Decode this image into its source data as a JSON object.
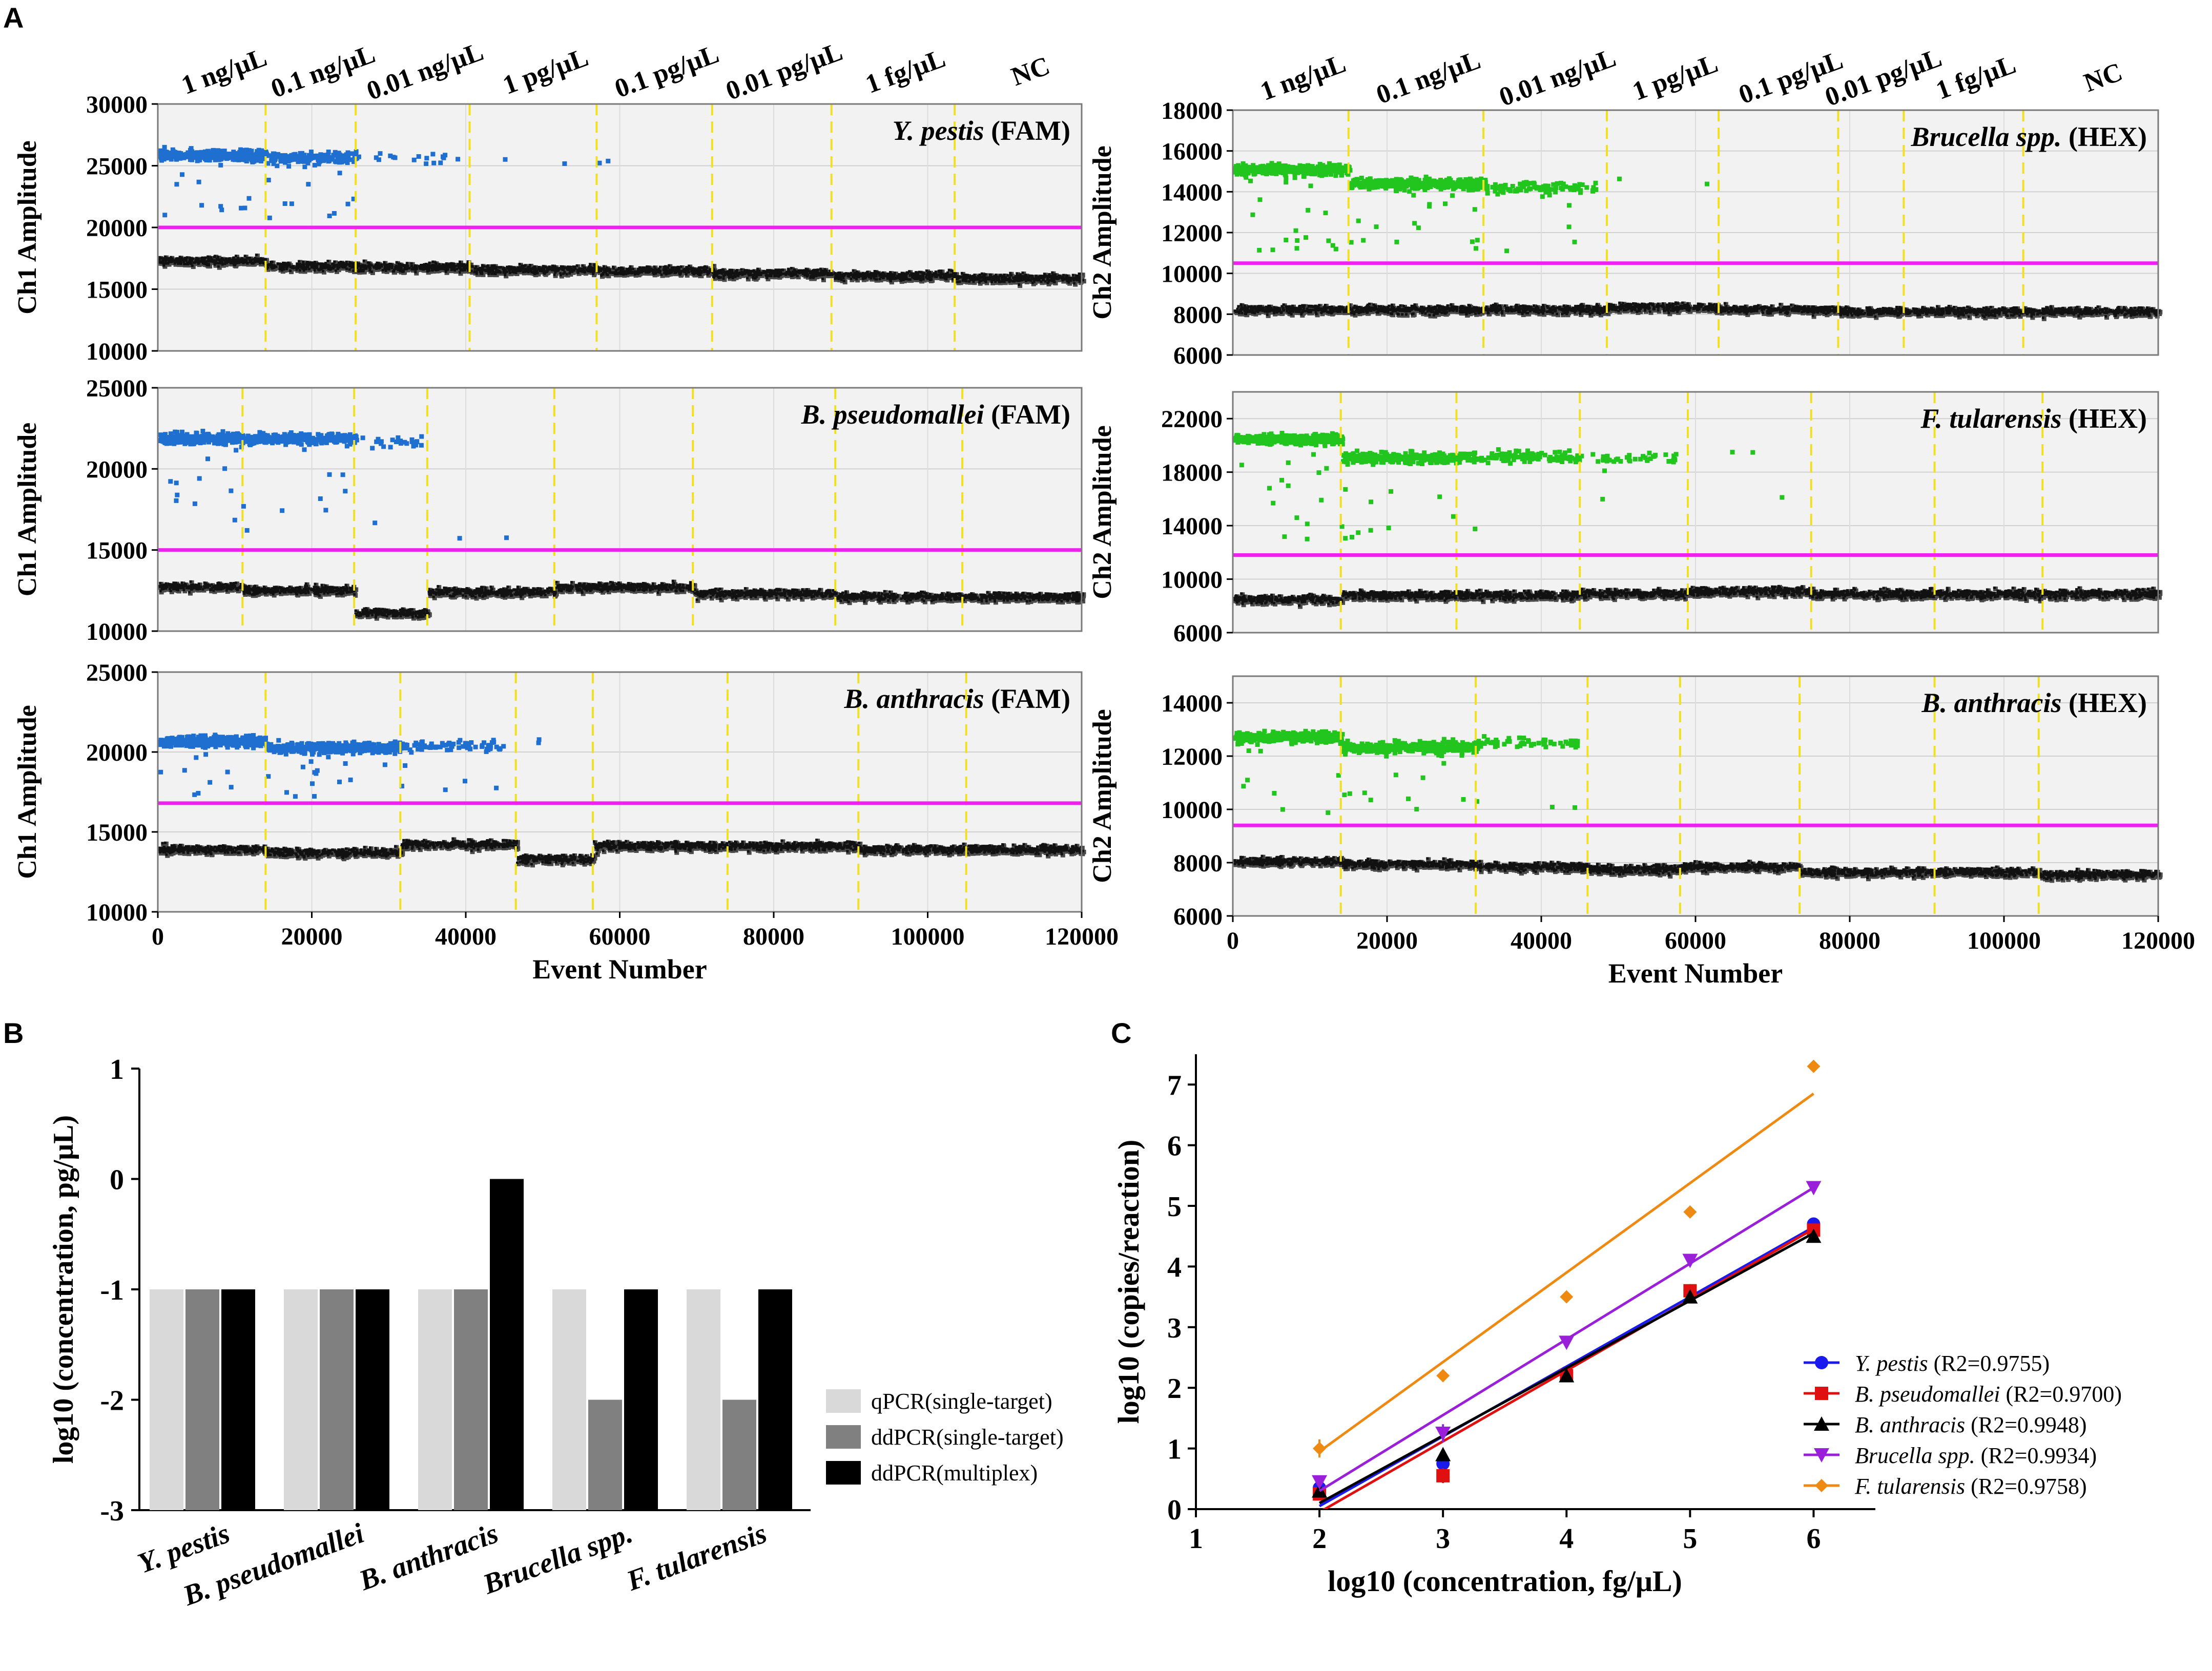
{
  "panel_labels": {
    "a": "A",
    "b": "B",
    "c": "C"
  },
  "chart_data": [
    {
      "id": "A1",
      "type": "scatter",
      "title": "Y. pestis",
      "channel": "(FAM)",
      "ylabel": "Ch1 Amplitude",
      "xlabel": "",
      "ylim": [
        10000,
        30000
      ],
      "yticks": [
        10000,
        15000,
        20000,
        25000,
        30000
      ],
      "xlim": [
        0,
        120000
      ],
      "xticks": [],
      "threshold": 20000,
      "positive_color": "#1f6fd1",
      "well_boundaries": [
        14000,
        25700,
        40500,
        57000,
        72000,
        87500,
        103500
      ],
      "well_labels": [
        "1 ng/μL",
        "0.1 ng/μL",
        "0.01 ng/μL",
        "1 pg/μL",
        "0.1 pg/μL",
        "0.01 pg/μL",
        "1 fg/μL",
        "NC"
      ],
      "positive_levels": [
        26000,
        25800,
        25800,
        25600,
        25500,
        0,
        0,
        0
      ],
      "positive_density": [
        1.0,
        0.6,
        0.05,
        0.004,
        0.002,
        0,
        0,
        0
      ],
      "negative_levels": [
        17400,
        17000,
        16900,
        16700,
        16600,
        16400,
        16200,
        16000
      ]
    },
    {
      "id": "A2",
      "type": "scatter",
      "title": "Brucella spp.",
      "channel": "(HEX)",
      "ylabel": "Ch2 Amplitude",
      "xlabel": "",
      "ylim": [
        6000,
        18000
      ],
      "yticks": [
        6000,
        8000,
        10000,
        12000,
        14000,
        16000,
        18000
      ],
      "xlim": [
        0,
        120000
      ],
      "xticks": [],
      "threshold": 10500,
      "positive_color": "#22c51e",
      "well_boundaries": [
        15000,
        32500,
        48500,
        63000,
        78500,
        87000,
        102500
      ],
      "well_labels": [
        "1 ng/μL",
        "0.1 ng/μL",
        "0.01 ng/μL",
        "1 pg/μL",
        "0.1 pg/μL",
        "0.01 pg/μL",
        "1 fg/μL",
        "NC"
      ],
      "positive_levels": [
        15200,
        14500,
        14300,
        14400,
        0,
        0,
        0,
        0
      ],
      "positive_density": [
        1.0,
        0.9,
        0.25,
        0.004,
        0,
        0,
        0,
        0
      ],
      "negative_levels": [
        8300,
        8300,
        8300,
        8400,
        8300,
        8200,
        8200,
        8200
      ]
    },
    {
      "id": "A3",
      "type": "scatter",
      "title": "B. pseudomallei",
      "channel": "(FAM)",
      "ylabel": "Ch1 Amplitude",
      "xlabel": "",
      "ylim": [
        10000,
        25000
      ],
      "yticks": [
        10000,
        15000,
        20000,
        25000
      ],
      "xlim": [
        0,
        120000
      ],
      "xticks": [],
      "threshold": 15000,
      "positive_color": "#1f6fd1",
      "well_boundaries": [
        11000,
        25500,
        35000,
        51500,
        69500,
        88000,
        104500
      ],
      "well_labels": [
        "1 ng/μL",
        "0.1 ng/μL",
        "0.01 ng/μL",
        "1 pg/μL",
        "0.1 pg/μL",
        "0.01 pg/μL",
        "1 fg/μL",
        "NC"
      ],
      "positive_levels": [
        22000,
        22000,
        21800,
        16000,
        0,
        0,
        0,
        0
      ],
      "positive_density": [
        1.0,
        0.85,
        0.12,
        0.003,
        0,
        0,
        0,
        0
      ],
      "negative_levels": [
        12800,
        12600,
        11200,
        12500,
        12800,
        12400,
        12200,
        12200
      ]
    },
    {
      "id": "A4",
      "type": "scatter",
      "title": "F. tularensis",
      "channel": "(HEX)",
      "ylabel": "Ch2 Amplitude",
      "xlabel": "",
      "ylim": [
        6000,
        24000
      ],
      "yticks": [
        6000,
        10000,
        14000,
        18000,
        22000
      ],
      "xlim": [
        0,
        120000
      ],
      "xticks": [],
      "threshold": 11800,
      "positive_color": "#22c51e",
      "well_boundaries": [
        14000,
        29000,
        45000,
        59000,
        75000,
        91000,
        105000
      ],
      "well_labels": [
        "1 ng/μL",
        "0.1 ng/μL",
        "0.01 ng/μL",
        "1 pg/μL",
        "0.1 pg/μL",
        "0.01 pg/μL",
        "1 fg/μL",
        "NC"
      ],
      "positive_levels": [
        20600,
        19200,
        19300,
        19200,
        19500,
        0,
        0,
        0
      ],
      "positive_density": [
        1.0,
        0.85,
        0.35,
        0.12,
        0.008,
        0,
        0,
        0
      ],
      "negative_levels": [
        8600,
        8900,
        8900,
        9000,
        9200,
        9000,
        9000,
        9000
      ]
    },
    {
      "id": "A5",
      "type": "scatter",
      "title": "B. anthracis",
      "channel": "(FAM)",
      "ylabel": "Ch1 Amplitude",
      "xlabel": "Event Number",
      "ylim": [
        10000,
        25000
      ],
      "yticks": [
        10000,
        15000,
        20000,
        25000
      ],
      "xlim": [
        0,
        120000
      ],
      "xticks": [
        0,
        20000,
        40000,
        60000,
        80000,
        100000,
        120000
      ],
      "threshold": 16800,
      "positive_color": "#1f6fd1",
      "well_boundaries": [
        14000,
        31500,
        46500,
        56500,
        74000,
        91000,
        105000
      ],
      "well_labels": [
        "1 ng/μL",
        "0.1 ng/μL",
        "0.01 ng/μL",
        "1 pg/μL",
        "0.1 pg/μL",
        "0.01 pg/μL",
        "1 fg/μL",
        "NC"
      ],
      "positive_levels": [
        20800,
        20400,
        20500,
        21000,
        0,
        0,
        0,
        0
      ],
      "positive_density": [
        1.0,
        0.9,
        0.2,
        0.005,
        0,
        0,
        0,
        0
      ],
      "negative_levels": [
        14000,
        13800,
        14300,
        13400,
        14200,
        14200,
        14000,
        14000
      ]
    },
    {
      "id": "A6",
      "type": "scatter",
      "title": "B. anthracis",
      "channel": "(HEX)",
      "ylabel": "Ch2 Amplitude",
      "xlabel": "Event Number",
      "ylim": [
        6000,
        15000
      ],
      "yticks": [
        6000,
        8000,
        10000,
        12000,
        14000
      ],
      "xlim": [
        0,
        120000
      ],
      "xticks": [
        0,
        20000,
        40000,
        60000,
        80000,
        100000,
        120000
      ],
      "threshold": 9400,
      "positive_color": "#22c51e",
      "well_boundaries": [
        14000,
        31500,
        46000,
        58000,
        73500,
        91000,
        104500
      ],
      "well_labels": [
        "1 ng/μL",
        "0.1 ng/μL",
        "0.01 ng/μL",
        "1 pg/μL",
        "0.1 pg/μL",
        "0.01 pg/μL",
        "1 fg/μL",
        "NC"
      ],
      "positive_levels": [
        12800,
        12400,
        12600,
        0,
        0,
        0,
        0,
        0
      ],
      "positive_density": [
        1.0,
        0.85,
        0.18,
        0,
        0,
        0,
        0,
        0
      ],
      "negative_levels": [
        8100,
        8000,
        7900,
        7800,
        7900,
        7700,
        7700,
        7600
      ]
    },
    {
      "id": "B",
      "type": "bar",
      "title": "",
      "ylabel": "log10 (concentration, pg/μL)",
      "ylim": [
        -3,
        1
      ],
      "yticks": [
        -3,
        -2,
        -1,
        0,
        1
      ],
      "categories": [
        "Y. pestis",
        "B. pseudomallei",
        "B. anthracis",
        "Brucella spp.",
        "F. tularensis"
      ],
      "series": [
        {
          "name": "qPCR(single-target)",
          "color": "#d9d9d9",
          "values": [
            -1,
            -1,
            -1,
            -1,
            -1
          ]
        },
        {
          "name": "ddPCR(single-target)",
          "color": "#808080",
          "values": [
            -1,
            -1,
            -1,
            -2,
            -2
          ]
        },
        {
          "name": "ddPCR(multiplex)",
          "color": "#000000",
          "values": [
            -1,
            -1,
            0,
            -1,
            -1
          ]
        }
      ],
      "legend": "right"
    },
    {
      "id": "C",
      "type": "line",
      "xlabel": "log10 (concentration, fg/μL)",
      "ylabel": "log10 (copies/reaction)",
      "xlim": [
        1,
        6.5
      ],
      "ylim": [
        0,
        7.5
      ],
      "xticks": [
        1,
        2,
        3,
        4,
        5,
        6
      ],
      "yticks": [
        0,
        1,
        2,
        3,
        4,
        5,
        6,
        7
      ],
      "legend": "right",
      "series": [
        {
          "name": "Y. pestis",
          "r2": "(R2=0.9755)",
          "color": "#1a1aee",
          "marker": "circle",
          "x": [
            2,
            3,
            4,
            5,
            6
          ],
          "y": [
            0.35,
            0.75,
            2.25,
            3.6,
            4.7
          ],
          "err": [
            0.12,
            0.1,
            0.05,
            0.05,
            0.04
          ],
          "fit": [
            [
              2,
              0.05
            ],
            [
              6,
              4.65
            ]
          ]
        },
        {
          "name": "B. pseudomallei",
          "r2": "(R2=0.9700)",
          "color": "#e01010",
          "marker": "square",
          "x": [
            2,
            3,
            4,
            5,
            6
          ],
          "y": [
            0.25,
            0.55,
            2.2,
            3.6,
            4.6
          ],
          "err": [
            0.1,
            0.12,
            0.05,
            0.05,
            0.04
          ],
          "fit": [
            [
              2,
              -0.05
            ],
            [
              6,
              4.62
            ]
          ]
        },
        {
          "name": "B. anthracis",
          "r2": "(R2=0.9948)",
          "color": "#000000",
          "marker": "triangle-up",
          "x": [
            2,
            3,
            4,
            5,
            6
          ],
          "y": [
            0.3,
            0.9,
            2.2,
            3.5,
            4.5
          ],
          "err": [
            0.1,
            0.08,
            0.05,
            0.05,
            0.04
          ],
          "fit": [
            [
              2,
              0.1
            ],
            [
              6,
              4.55
            ]
          ]
        },
        {
          "name": "Brucella spp.",
          "r2": "(R2=0.9934)",
          "color": "#9a1fd8",
          "marker": "triangle-down",
          "x": [
            2,
            3,
            4,
            5,
            6
          ],
          "y": [
            0.45,
            1.25,
            2.75,
            4.1,
            5.3
          ],
          "err": [
            0.1,
            0.15,
            0.05,
            0.06,
            0.04
          ],
          "fit": [
            [
              2,
              0.3
            ],
            [
              6,
              5.3
            ]
          ]
        },
        {
          "name": "F. tularensis",
          "r2": "(R2=0.9758)",
          "color": "#ee8a12",
          "marker": "diamond",
          "x": [
            2,
            3,
            4,
            5,
            6
          ],
          "y": [
            1.0,
            2.2,
            3.5,
            4.9,
            7.3
          ],
          "err": [
            0.15,
            0.1,
            0.05,
            0.05,
            0.04
          ],
          "fit": [
            [
              2,
              0.95
            ],
            [
              6,
              6.85
            ]
          ]
        }
      ]
    }
  ]
}
